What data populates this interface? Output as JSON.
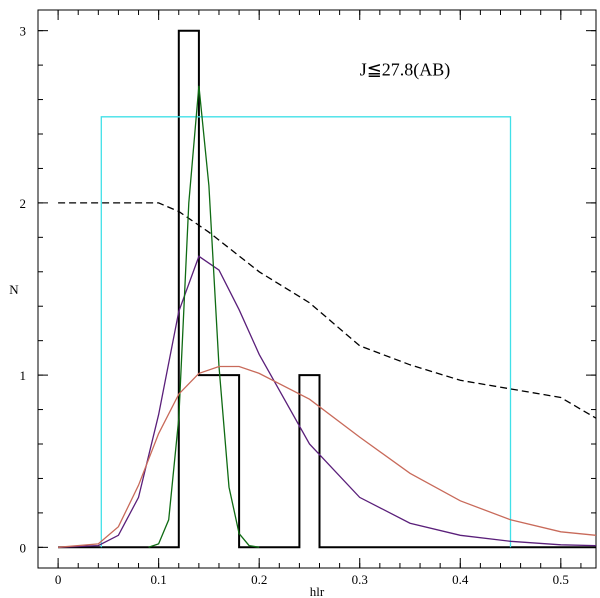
{
  "chart_data": {
    "type": "line",
    "xlabel": "hlr",
    "ylabel": "N",
    "xlim": [
      -0.02,
      0.535
    ],
    "ylim": [
      -0.12,
      3.12
    ],
    "x_ticks": [
      0,
      0.1,
      0.2,
      0.3,
      0.4,
      0.5
    ],
    "x_tick_labels": [
      "0",
      "0.1",
      "0.2",
      "0.3",
      "0.4",
      "0.5"
    ],
    "y_ticks": [
      0,
      1,
      2,
      3
    ],
    "y_tick_labels": [
      "0",
      "1",
      "2",
      "3"
    ],
    "annotation": "J≦27.8(AB)",
    "grid": false,
    "legend": "none",
    "series": [
      {
        "kind": "histogram-step",
        "color": "#000000",
        "dash": "solid",
        "x": [
          0,
          0.12,
          0.12,
          0.14,
          0.14,
          0.18,
          0.18,
          0.24,
          0.24,
          0.26,
          0.26,
          0.535
        ],
        "y": [
          0,
          0,
          3,
          3,
          1,
          1,
          0,
          0,
          1,
          1,
          0,
          0
        ]
      },
      {
        "kind": "box",
        "color": "#40e0e8",
        "dash": "solid",
        "x": [
          0.043,
          0.043,
          0.45,
          0.45
        ],
        "y": [
          0,
          2.5,
          2.5,
          0
        ]
      },
      {
        "kind": "curve",
        "color": "#000000",
        "dash": "dashed",
        "x": [
          0,
          0.02,
          0.05,
          0.1,
          0.12,
          0.15,
          0.2,
          0.25,
          0.3,
          0.35,
          0.4,
          0.45,
          0.5,
          0.535
        ],
        "y": [
          2.0,
          2.0,
          2.0,
          2.0,
          1.95,
          1.83,
          1.6,
          1.42,
          1.17,
          1.06,
          0.97,
          0.92,
          0.87,
          0.75
        ]
      },
      {
        "kind": "curve",
        "color": "#5a1f7a",
        "dash": "solid",
        "x": [
          0,
          0.04,
          0.06,
          0.08,
          0.1,
          0.12,
          0.14,
          0.16,
          0.18,
          0.2,
          0.25,
          0.3,
          0.35,
          0.4,
          0.45,
          0.5,
          0.535
        ],
        "y": [
          0,
          0.01,
          0.07,
          0.29,
          0.77,
          1.37,
          1.69,
          1.61,
          1.38,
          1.12,
          0.6,
          0.29,
          0.14,
          0.07,
          0.035,
          0.015,
          0.01
        ]
      },
      {
        "kind": "curve",
        "color": "#0f6b13",
        "dash": "solid",
        "x": [
          0.09,
          0.1,
          0.11,
          0.12,
          0.13,
          0.14,
          0.15,
          0.16,
          0.17,
          0.18,
          0.19,
          0.2
        ],
        "y": [
          0,
          0.02,
          0.16,
          0.75,
          2.0,
          2.68,
          2.1,
          1.05,
          0.35,
          0.08,
          0.01,
          0
        ]
      },
      {
        "kind": "curve",
        "color": "#c86a5a",
        "dash": "solid",
        "x": [
          0,
          0.04,
          0.06,
          0.08,
          0.1,
          0.12,
          0.14,
          0.16,
          0.18,
          0.2,
          0.25,
          0.3,
          0.35,
          0.4,
          0.45,
          0.5,
          0.535
        ],
        "y": [
          0,
          0.02,
          0.12,
          0.36,
          0.66,
          0.89,
          1.01,
          1.05,
          1.05,
          1.01,
          0.86,
          0.64,
          0.43,
          0.27,
          0.16,
          0.09,
          0.07
        ]
      }
    ]
  }
}
